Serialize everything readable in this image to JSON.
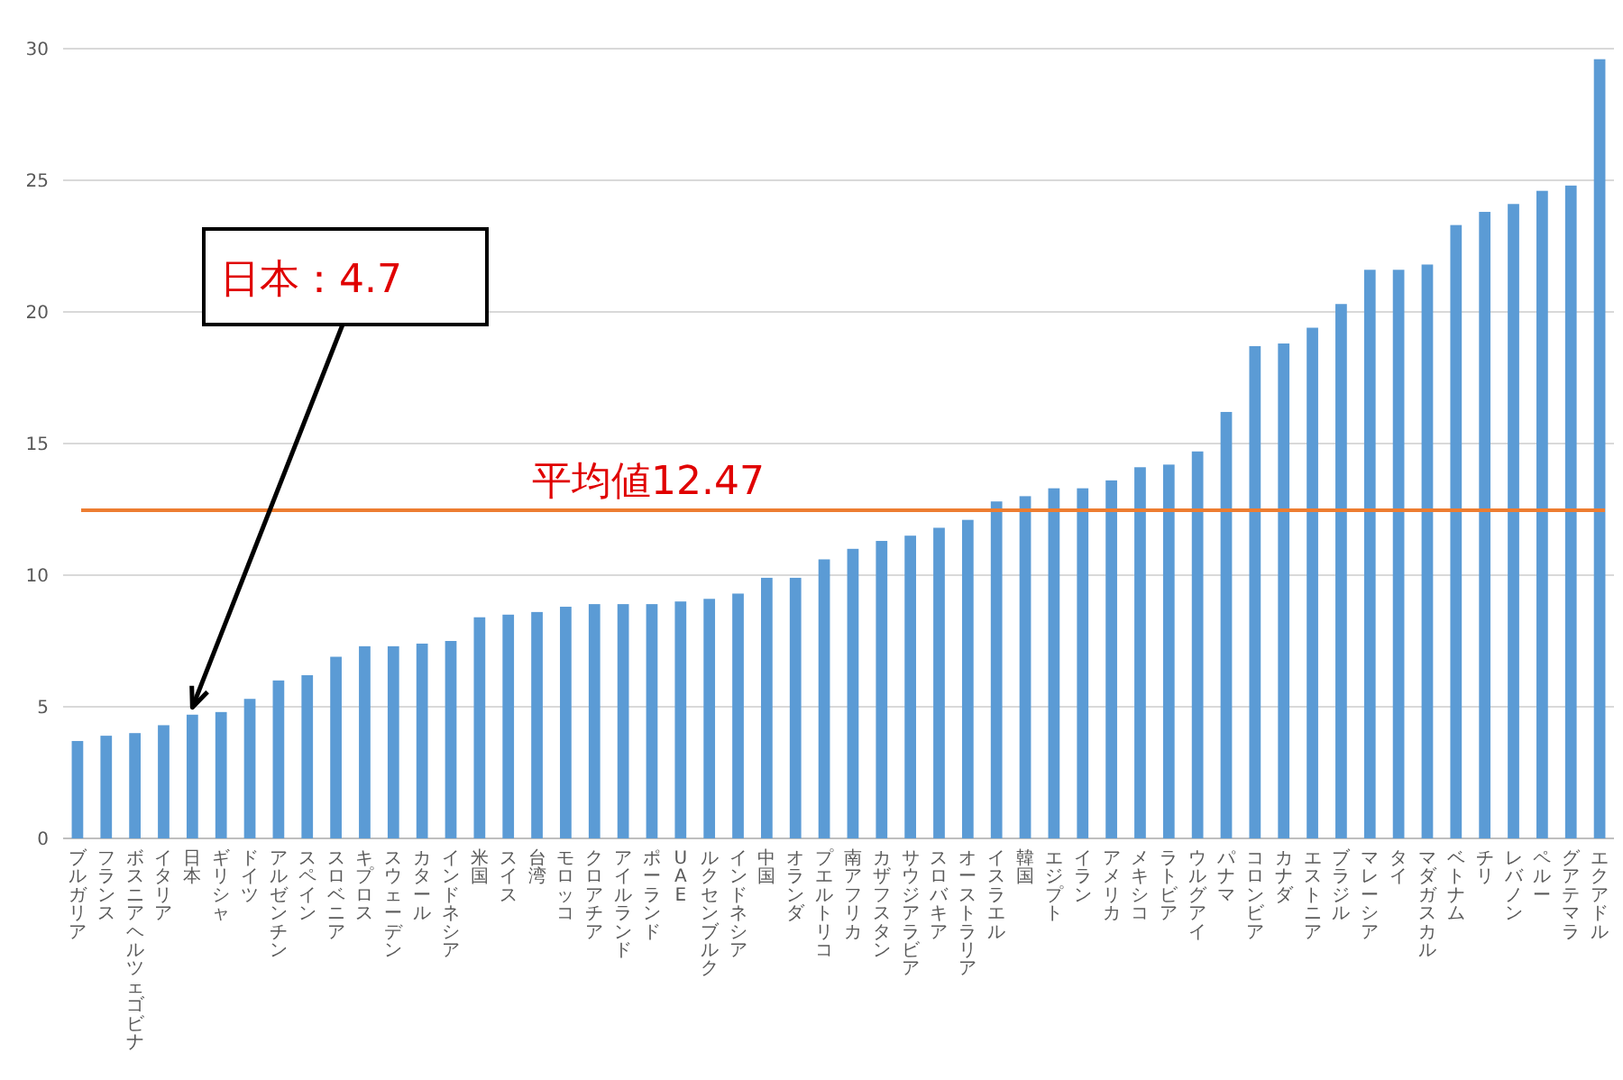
{
  "chart_data": {
    "type": "bar",
    "categories": [
      "ブルガリア",
      "フランス",
      "ボスニアヘルツェゴビナ",
      "イタリア",
      "日本",
      "ギリシャ",
      "ドイツ",
      "アルゼンチン",
      "スペイン",
      "スロベニア",
      "キプロス",
      "スウェーデン",
      "カタール",
      "インドネシア",
      "米国",
      "スイス",
      "台湾",
      "モロッコ",
      "クロアチア",
      "アイルランド",
      "ポーランド",
      "UAE",
      "ルクセンブルク",
      "インドネシア",
      "中国",
      "オランダ",
      "プエルトリコ",
      "南アフリカ",
      "カザフスタン",
      "サウジアラビア",
      "スロバキア",
      "オーストラリア",
      "イスラエル",
      "韓国",
      "エジプト",
      "イラン",
      "アメリカ",
      "メキシコ",
      "ラトビア",
      "ウルグアイ",
      "パナマ",
      "コロンビア",
      "カナダ",
      "エストニア",
      "ブラジル",
      "マレーシア",
      "タイ",
      "マダガスカル",
      "ベトナム",
      "チリ",
      "レバノン",
      "ペルー",
      "グアテマラ",
      "エクアドル"
    ],
    "values": [
      3.7,
      3.9,
      4.0,
      4.3,
      4.7,
      4.8,
      5.3,
      6.0,
      6.2,
      6.9,
      7.3,
      7.3,
      7.4,
      7.5,
      8.4,
      8.5,
      8.6,
      8.8,
      8.9,
      8.9,
      8.9,
      9.0,
      9.1,
      9.3,
      9.9,
      9.9,
      10.6,
      11.0,
      11.3,
      11.5,
      11.8,
      12.1,
      12.8,
      13.0,
      13.3,
      13.3,
      13.6,
      14.1,
      14.2,
      14.7,
      16.2,
      18.7,
      18.8,
      19.4,
      20.3,
      21.6,
      21.6,
      21.8,
      23.3,
      23.8,
      24.1,
      24.6,
      24.8,
      29.6
    ],
    "color": "#5b9bd5",
    "ylim": [
      0,
      30
    ],
    "yticks": [
      0,
      5,
      10,
      15,
      20,
      25,
      30
    ],
    "grid": "y",
    "ref_lines": [
      {
        "axis": "y",
        "value": 12.47,
        "label": "平均値12.47",
        "color": "#ed7d31"
      }
    ],
    "annotations": [
      {
        "text": "日本：4.7",
        "x": "日本",
        "y": 4.7
      }
    ]
  }
}
